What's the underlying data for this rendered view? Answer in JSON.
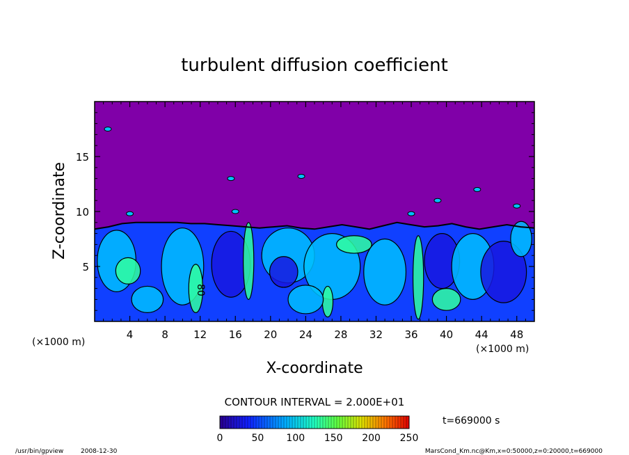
{
  "chart_data": {
    "type": "heatmap",
    "title": "turbulent diffusion coefficient",
    "xlabel": "X-coordinate",
    "ylabel": "Z-coordinate",
    "x_unit": "(×1000 m)",
    "z_unit": "(×1000 m)",
    "xlim": [
      0,
      50
    ],
    "zlim": [
      0,
      20
    ],
    "x_ticks": [
      4,
      8,
      12,
      16,
      20,
      24,
      28,
      32,
      36,
      40,
      44,
      48
    ],
    "z_ticks": [
      5,
      10,
      15
    ],
    "contour_interval_text": "CONTOUR INTERVAL = 2.000E+01",
    "contour_labels": [
      "80"
    ],
    "colorbar": {
      "ticks": [
        0,
        50,
        100,
        150,
        200,
        250
      ],
      "range": [
        0,
        250
      ]
    },
    "time_text": "t=669000 s",
    "bl_top_km": [
      8.4,
      8.6,
      8.9,
      9.0,
      9.0,
      9.0,
      9.0,
      8.9,
      8.9,
      8.8,
      8.7,
      8.6,
      8.5,
      8.6,
      8.7,
      8.5,
      8.4,
      8.6,
      8.8,
      8.6,
      8.4,
      8.7,
      9.0,
      8.8,
      8.6,
      8.7,
      8.9,
      8.6,
      8.4,
      8.6,
      8.8,
      8.6,
      8.5
    ],
    "colors": {
      "background": "#8000a8",
      "high": "#30ffa0",
      "mid": "#00c0ff",
      "low": "#1040ff",
      "lowest": "#1818e0"
    }
  },
  "footer": {
    "program": "/usr/bin/gpview",
    "date": "2008-12-30",
    "source": "MarsCond_Km.nc@Km,x=0:50000,z=0:20000,t=669000"
  }
}
